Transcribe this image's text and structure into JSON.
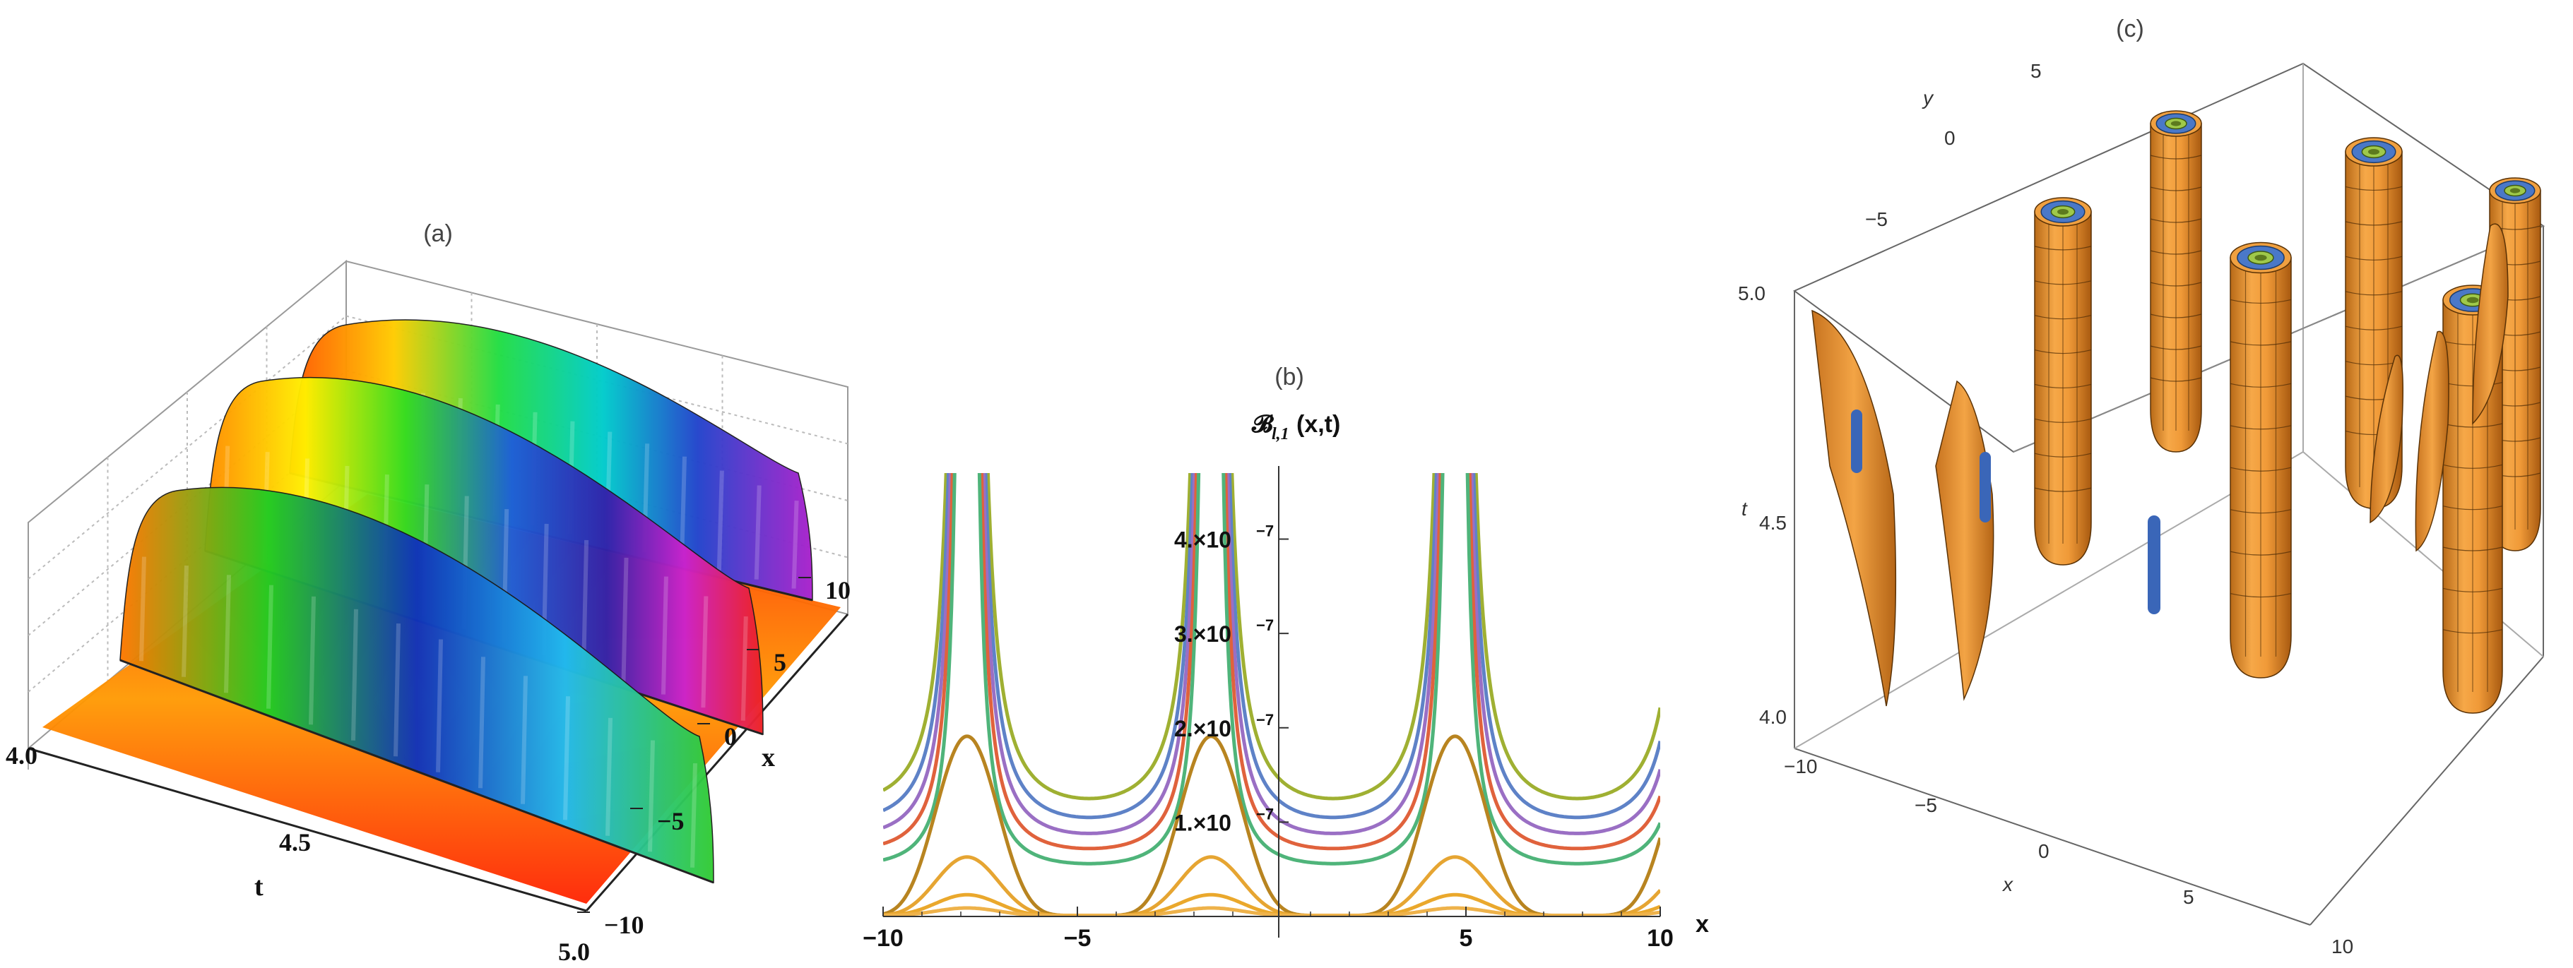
{
  "chart_data": [
    {
      "type": "surface3d",
      "title": "(a)",
      "axes": {
        "t": {
          "label": "t",
          "ticks": [
            "4.0",
            "4.5",
            "5.0"
          ],
          "range": [
            4.0,
            5.0
          ]
        },
        "x": {
          "label": "x",
          "ticks": [
            "10",
            "5",
            "0",
            "−5",
            "−10"
          ],
          "range": [
            -10,
            10
          ]
        }
      },
      "grid": true,
      "ridges": [
        {
          "x_center": 7.6,
          "t_start": 4.0,
          "t_end": 5.0
        },
        {
          "x_center": 1.3,
          "t_start": 4.0,
          "t_end": 5.0
        },
        {
          "x_center": -4.9,
          "t_start": 4.0,
          "t_end": 5.0
        }
      ]
    },
    {
      "type": "line",
      "title": "(b)",
      "ylabel_main": "𝓑",
      "ylabel_sub": "l,1",
      "ylabel_rest": "(x,t)",
      "xlabel": "x",
      "xlim": [
        -10,
        10
      ],
      "ylim": [
        0,
        4.7e-07
      ],
      "x_ticks": [
        "−10",
        "−5",
        "5",
        "10"
      ],
      "y_ticks": [
        {
          "value": 1e-07,
          "label": "1.×10",
          "exp": "−7"
        },
        {
          "value": 2e-07,
          "label": "2.×10",
          "exp": "−7"
        },
        {
          "value": 3e-07,
          "label": "3.×10",
          "exp": "−7"
        },
        {
          "value": 4e-07,
          "label": "4.×10",
          "exp": "−7"
        }
      ],
      "period": 6.28,
      "wells": [
        -4.7,
        1.6,
        7.9
      ],
      "curves": [
        {
          "kind": "u",
          "min": 1.25e-07,
          "color": "#9fb032"
        },
        {
          "kind": "u",
          "min": 1.05e-07,
          "color": "#5e82c7"
        },
        {
          "kind": "u",
          "min": 8.8e-08,
          "color": "#9a6fc4"
        },
        {
          "kind": "u",
          "min": 7.2e-08,
          "color": "#e0623c"
        },
        {
          "kind": "u",
          "min": 5.6e-08,
          "color": "#4fb47a"
        },
        {
          "kind": "bump",
          "peak": 1.9e-07,
          "color": "#b88420"
        },
        {
          "kind": "bump",
          "peak": 6.2e-08,
          "color": "#e6a532"
        },
        {
          "kind": "bump",
          "peak": 2.2e-08,
          "color": "#eaa82c"
        },
        {
          "kind": "bump",
          "peak": 8e-09,
          "color": "#eeb24a"
        }
      ]
    },
    {
      "type": "isosurface3d",
      "title": "(c)",
      "axes": {
        "x": {
          "label": "x",
          "ticks": [
            "−10",
            "−5",
            "0",
            "5",
            "10"
          ],
          "range": [
            -10,
            10
          ]
        },
        "y": {
          "label": "y",
          "ticks": [
            "5",
            "0",
            "−5"
          ],
          "range": [
            -5,
            5
          ]
        },
        "t": {
          "label": "t",
          "ticks": [
            "5.0",
            "4.5",
            "4.0"
          ],
          "range": [
            4.0,
            5.0
          ]
        }
      },
      "surface_colors": {
        "outer": "#f0a040",
        "inner": "#4a78c8",
        "core": "#9fc94a"
      }
    }
  ]
}
